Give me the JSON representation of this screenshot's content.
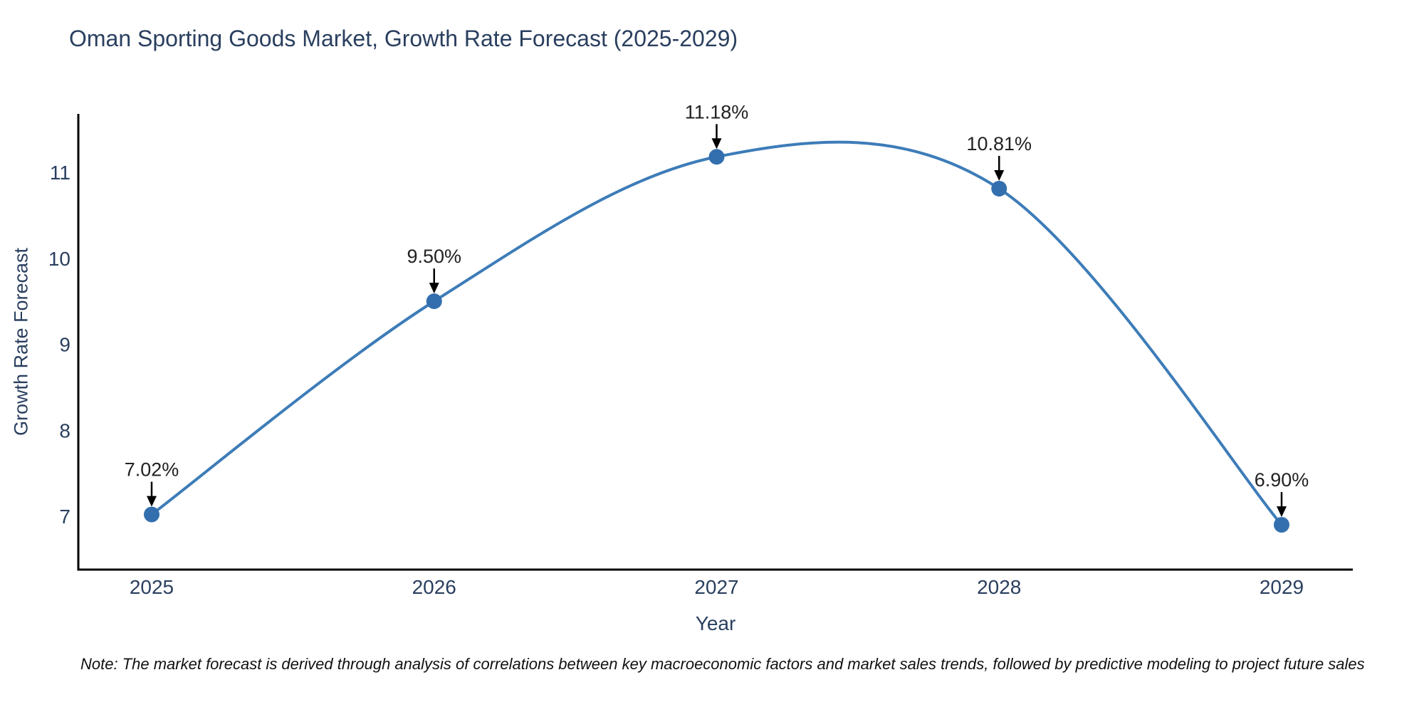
{
  "chart": {
    "note": "Note: The market forecast is derived through analysis of correlations between key macroeconomic factors and market sales trends, followed by predictive modeling to project future sales"
  },
  "chart_data": {
    "type": "line",
    "title": "Oman Sporting Goods Market, Growth Rate Forecast (2025-2029)",
    "xlabel": "Year",
    "ylabel": "Growth Rate Forecast",
    "categories": [
      "2025",
      "2026",
      "2027",
      "2028",
      "2029"
    ],
    "values": [
      7.02,
      9.5,
      11.18,
      10.81,
      6.9
    ],
    "point_labels": [
      "7.02%",
      "9.50%",
      "11.18%",
      "10.81%",
      "6.90%"
    ],
    "y_ticks": [
      7,
      8,
      9,
      10,
      11
    ],
    "ylim": [
      6.4,
      11.7
    ],
    "grid": false,
    "legend_position": "none",
    "line_shape": "spline",
    "annotation_style": "label-with-down-arrow",
    "colors": {
      "line": "#3d7cb8",
      "marker": "#336fae",
      "annotation_text": "#222222",
      "arrow": "#000000",
      "axis_spine": "#000000",
      "tick_label": "#2a3f5f",
      "title": "#2a3f5f"
    }
  }
}
